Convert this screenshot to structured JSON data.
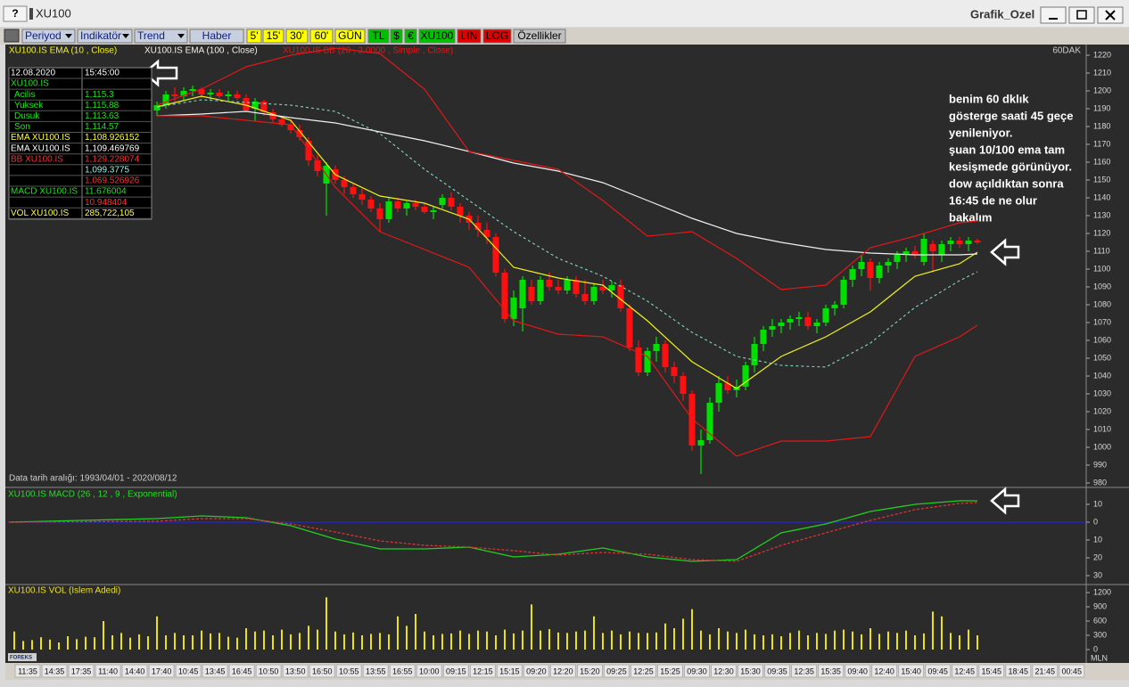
{
  "window": {
    "help": "?",
    "title": "XU100",
    "app": "Grafik_Ozel"
  },
  "toolbar": [
    "Periyod",
    "Indikatör",
    "Trend",
    "Haber",
    "5'",
    "15'",
    "30'",
    "60'",
    "GÜN",
    "TL",
    "$",
    "€",
    "XU100",
    "LIN",
    "LOG",
    "Özellikler"
  ],
  "info_panel": {
    "rows": [
      {
        "label": "12.08.2020",
        "value": "15:45:00",
        "color": "#ffffff"
      },
      {
        "label": "XU100.IS",
        "color": "#20e020"
      },
      {
        "label": "Acilis",
        "value": "1,115.3",
        "color": "#20e020"
      },
      {
        "label": "Yuksek",
        "value": "1,115.88",
        "color": "#20e020"
      },
      {
        "label": "Dusuk",
        "value": "1,113.63",
        "color": "#20e020"
      },
      {
        "label": "Son",
        "value": "1,114.57",
        "color": "#20e020"
      },
      {
        "label": "EMA XU100.IS",
        "value": "1,108.926152",
        "color": "#ffff40"
      },
      {
        "label": "EMA XU100.IS",
        "value": "1,109.469769",
        "color": "#ffffff"
      },
      {
        "label": "BB XU100.IS",
        "value": "1,129.228074",
        "color": "#ff3030"
      },
      {
        "value": "1,099.3775",
        "color": "#a0f0e0"
      },
      {
        "value": "1,069.526926",
        "color": "#ff3030"
      },
      {
        "label": "MACD XU100.IS",
        "value": "11.676004",
        "color": "#20e020"
      },
      {
        "value": "10.948404",
        "color": "#ff3030"
      },
      {
        "label": "VOL XU100.IS",
        "value": "285,722,105",
        "color": "#ffff40"
      }
    ]
  },
  "annotation": {
    "lines": [
      "benim 60 dklık",
      "gösterge saati 45 geçe",
      "yenileniyor.",
      "şuan 10/100 ema tam",
      "kesişmede görünüyor.",
      "dow açıldıktan sonra",
      "16:45 de ne olur",
      "bakalım"
    ]
  },
  "chart_data": [
    {
      "type": "candlestick",
      "panel_label": "60DAK",
      "date_range": "Data tarih aralığı: 1993/04/01 - 2020/08/12",
      "xlim": [
        -16.8,
        104.2
      ],
      "ylim": [
        978,
        1226
      ],
      "yticks": [
        1220,
        1210,
        1200,
        1190,
        1180,
        1170,
        1160,
        1150,
        1140,
        1130,
        1120,
        1110,
        1100,
        1090,
        1080,
        1070,
        1060,
        1050,
        1040,
        1030,
        1020,
        1010,
        1000,
        990,
        980
      ],
      "up_color": "#00e000",
      "down_color": "#ff1010",
      "candles": [
        [
          1189,
          1194,
          1186,
          1192
        ],
        [
          1192,
          1200,
          1190,
          1198
        ],
        [
          1198,
          1202,
          1194,
          1197
        ],
        [
          1197,
          1202,
          1195,
          1200
        ],
        [
          1200,
          1203,
          1197,
          1201
        ],
        [
          1201,
          1202,
          1196,
          1198
        ],
        [
          1198,
          1201,
          1195,
          1199
        ],
        [
          1199,
          1201,
          1196,
          1197
        ],
        [
          1197,
          1200,
          1194,
          1198
        ],
        [
          1198,
          1200,
          1195,
          1196
        ],
        [
          1196,
          1198,
          1188,
          1189
        ],
        [
          1190,
          1196,
          1183,
          1194
        ],
        [
          1194,
          1195,
          1186,
          1188
        ],
        [
          1188,
          1190,
          1182,
          1184
        ],
        [
          1184,
          1186,
          1180,
          1181
        ],
        [
          1181,
          1184,
          1176,
          1178
        ],
        [
          1178,
          1181,
          1172,
          1174
        ],
        [
          1172,
          1174,
          1158,
          1161
        ],
        [
          1161,
          1164,
          1152,
          1155
        ],
        [
          1148,
          1160,
          1130,
          1158
        ],
        [
          1156,
          1158,
          1148,
          1150
        ],
        [
          1150,
          1152,
          1142,
          1146
        ],
        [
          1146,
          1148,
          1140,
          1142
        ],
        [
          1142,
          1145,
          1136,
          1139
        ],
        [
          1139,
          1141,
          1132,
          1134
        ],
        [
          1134,
          1137,
          1121,
          1128
        ],
        [
          1128,
          1140,
          1126,
          1138
        ],
        [
          1138,
          1140,
          1132,
          1134
        ],
        [
          1134,
          1138,
          1130,
          1137
        ],
        [
          1137,
          1139,
          1133,
          1135
        ],
        [
          1135,
          1137,
          1131,
          1132
        ],
        [
          1132,
          1135,
          1128,
          1133
        ],
        [
          1136,
          1142,
          1134,
          1140
        ],
        [
          1140,
          1143,
          1133,
          1135
        ],
        [
          1135,
          1137,
          1126,
          1130
        ],
        [
          1130,
          1132,
          1122,
          1126
        ],
        [
          1126,
          1130,
          1118,
          1122
        ],
        [
          1122,
          1126,
          1114,
          1118
        ],
        [
          1118,
          1120,
          1096,
          1098
        ],
        [
          1098,
          1100,
          1070,
          1072
        ],
        [
          1072,
          1088,
          1068,
          1084
        ],
        [
          1078,
          1096,
          1065,
          1094
        ],
        [
          1090,
          1094,
          1080,
          1082
        ],
        [
          1082,
          1096,
          1080,
          1094
        ],
        [
          1094,
          1098,
          1088,
          1090
        ],
        [
          1090,
          1094,
          1086,
          1088
        ],
        [
          1088,
          1096,
          1086,
          1094
        ],
        [
          1094,
          1096,
          1084,
          1086
        ],
        [
          1086,
          1094,
          1080,
          1082
        ],
        [
          1082,
          1092,
          1080,
          1090
        ],
        [
          1090,
          1094,
          1086,
          1088
        ],
        [
          1088,
          1093,
          1084,
          1091
        ],
        [
          1091,
          1094,
          1076,
          1078
        ],
        [
          1078,
          1080,
          1054,
          1056
        ],
        [
          1056,
          1060,
          1040,
          1042
        ],
        [
          1042,
          1056,
          1040,
          1054
        ],
        [
          1054,
          1062,
          1048,
          1058
        ],
        [
          1058,
          1060,
          1042,
          1045
        ],
        [
          1045,
          1048,
          1036,
          1040
        ],
        [
          1040,
          1042,
          1026,
          1030
        ],
        [
          1030,
          1032,
          998,
          1001
        ],
        [
          1001,
          1010,
          985,
          1004
        ],
        [
          1004,
          1028,
          1002,
          1025
        ],
        [
          1025,
          1040,
          1020,
          1036
        ],
        [
          1036,
          1040,
          1030,
          1032
        ],
        [
          1032,
          1038,
          1028,
          1034
        ],
        [
          1034,
          1048,
          1032,
          1046
        ],
        [
          1046,
          1062,
          1042,
          1058
        ],
        [
          1058,
          1068,
          1054,
          1066
        ],
        [
          1066,
          1072,
          1062,
          1068
        ],
        [
          1068,
          1072,
          1064,
          1070
        ],
        [
          1070,
          1074,
          1066,
          1072
        ],
        [
          1072,
          1076,
          1068,
          1073
        ],
        [
          1073,
          1076,
          1066,
          1068
        ],
        [
          1068,
          1072,
          1064,
          1070
        ],
        [
          1070,
          1080,
          1068,
          1078
        ],
        [
          1078,
          1082,
          1074,
          1080
        ],
        [
          1080,
          1096,
          1078,
          1094
        ],
        [
          1094,
          1102,
          1090,
          1100
        ],
        [
          1100,
          1108,
          1096,
          1104
        ],
        [
          1104,
          1106,
          1088,
          1095
        ],
        [
          1095,
          1104,
          1092,
          1102
        ],
        [
          1102,
          1106,
          1098,
          1104
        ],
        [
          1104,
          1110,
          1100,
          1108
        ],
        [
          1108,
          1112,
          1104,
          1110
        ],
        [
          1110,
          1113,
          1106,
          1108
        ],
        [
          1104,
          1120,
          1102,
          1117
        ],
        [
          1114,
          1116,
          1098,
          1110
        ],
        [
          1108,
          1116,
          1104,
          1114
        ],
        [
          1114,
          1118,
          1110,
          1116
        ],
        [
          1116,
          1118,
          1112,
          1114
        ],
        [
          1114,
          1118,
          1110,
          1116
        ],
        [
          1116,
          1117,
          1114,
          1115
        ]
      ],
      "line_x": [
        0,
        5,
        10,
        15,
        20,
        25,
        30,
        35,
        40,
        45,
        50,
        55,
        60,
        65,
        70,
        75,
        80,
        85,
        90,
        92
      ],
      "series": [
        {
          "name": "XU100.IS EMA (10 , Close)",
          "color": "#f0f020",
          "values": [
            1191,
            1197,
            1192,
            1183.5,
            1153,
            1141,
            1137,
            1128,
            1101,
            1095,
            1091,
            1071,
            1048,
            1033,
            1051,
            1062,
            1076,
            1096,
            1103,
            1109.5
          ]
        },
        {
          "name": "XU100.IS EMA (100 , Close)",
          "color": "#f0f0f0",
          "values": [
            1186,
            1187,
            1188.5,
            1185,
            1182,
            1177,
            1172,
            1166,
            1159.5,
            1155,
            1148.5,
            1138.5,
            1128.5,
            1120,
            1115,
            1111,
            1109,
            1108,
            1108,
            1108.5
          ]
        },
        {
          "name": "XU100.IS BB (20 , 2.0000 , Simple , Close)",
          "color": "#e01818",
          "values": [
            1192,
            1201,
            1213.5,
            1220,
            1224,
            1221,
            1201,
            1166,
            1161,
            1156,
            1138.5,
            1118.5,
            1121,
            1106,
            1088.5,
            1091,
            1112,
            1118.5,
            1126,
            1127
          ],
          "middle": [
            1191,
            1195,
            1193.5,
            1192,
            1188.5,
            1176,
            1156,
            1138.5,
            1121,
            1106,
            1096,
            1082,
            1064.5,
            1051,
            1046,
            1045,
            1058.5,
            1078.5,
            1093.5,
            1098.5
          ],
          "lower": [
            1186,
            1186,
            1183.5,
            1181,
            1146,
            1121,
            1111,
            1101,
            1071,
            1063.5,
            1062,
            1051,
            1016,
            995,
            1003.5,
            1003.5,
            1006,
            1051,
            1062,
            1068.5
          ],
          "middle_color": "#80d8c8",
          "middle_dashed": true
        }
      ]
    },
    {
      "type": "line",
      "title": "XU100.IS MACD (26 , 12 , 9 , Exponential)",
      "zero_line_color": "#2020ff",
      "xlim": [
        -16.8,
        104.2
      ],
      "ylim": [
        -34.5,
        19
      ],
      "yticks": [
        10,
        0,
        {
          "value": -10,
          "label": "10"
        },
        {
          "value": -20,
          "label": "20"
        },
        {
          "value": -30,
          "label": "30"
        }
      ],
      "x": [
        -16.6,
        0,
        5,
        10,
        15,
        20,
        25,
        30,
        35,
        40,
        45,
        50,
        55,
        60,
        65,
        70,
        75,
        80,
        85,
        90,
        92
      ],
      "series": [
        {
          "color": "#20d020",
          "values": [
            0,
            2,
            3.5,
            2.5,
            -2,
            -9.5,
            -15,
            -15,
            -14,
            -19.5,
            -18,
            -14.5,
            -19.5,
            -22,
            -21,
            -6,
            -1,
            6,
            10,
            12,
            12
          ]
        },
        {
          "color": "#e03030",
          "dashed": true,
          "values": [
            0,
            0.5,
            2,
            2,
            -1,
            -5.5,
            -10.5,
            -13,
            -14,
            -16,
            -18.5,
            -17,
            -18,
            -21,
            -22,
            -13,
            -6,
            1,
            7,
            10.5,
            11
          ]
        }
      ]
    },
    {
      "type": "bar",
      "title": "XU100.IS VOL (Islem Adedi)",
      "color": "#e8e020",
      "unit_label": "MLN",
      "logo": "FOREKS",
      "xlim": [
        -0.8,
        120.2
      ],
      "ylim": [
        -262.5,
        1350
      ],
      "yticks": [
        1200,
        900,
        600,
        300,
        0
      ],
      "values": [
        380,
        180,
        200,
        260,
        210,
        150,
        280,
        220,
        270,
        260,
        600,
        300,
        350,
        250,
        320,
        280,
        700,
        300,
        350,
        300,
        300,
        400,
        340,
        350,
        270,
        250,
        450,
        380,
        400,
        300,
        420,
        320,
        350,
        500,
        420,
        1100,
        380,
        320,
        360,
        300,
        330,
        350,
        320,
        700,
        500,
        750,
        380,
        300,
        330,
        340,
        400,
        330,
        400,
        380,
        300,
        420,
        340,
        400,
        950,
        400,
        430,
        360,
        350,
        380,
        400,
        700,
        350,
        400,
        320,
        380,
        350,
        350,
        360,
        550,
        450,
        650,
        850,
        400,
        320,
        450,
        380,
        350,
        420,
        320,
        300,
        320,
        280,
        350,
        400,
        300,
        350,
        330,
        400,
        420,
        380,
        320,
        450,
        330,
        380,
        350,
        400,
        300,
        340,
        800,
        700,
        350,
        300,
        420,
        300
      ],
      "time_labels": [
        "11:35",
        "14:35",
        "17:35",
        "11:40",
        "14:40",
        "17:40",
        "10:45",
        "13:45",
        "16:45",
        "10:50",
        "13:50",
        "16:50",
        "10:55",
        "13:55",
        "16:55",
        "10:00",
        "09:15",
        "12:15",
        "15:15",
        "09:20",
        "12:20",
        "15:20",
        "09:25",
        "12:25",
        "15:25",
        "09:30",
        "12:30",
        "15:30",
        "09:35",
        "12:35",
        "15:35",
        "09:40",
        "12:40",
        "15:40",
        "09:45",
        "12:45",
        "15:45",
        "18:45",
        "21:45",
        "00:45"
      ]
    }
  ]
}
